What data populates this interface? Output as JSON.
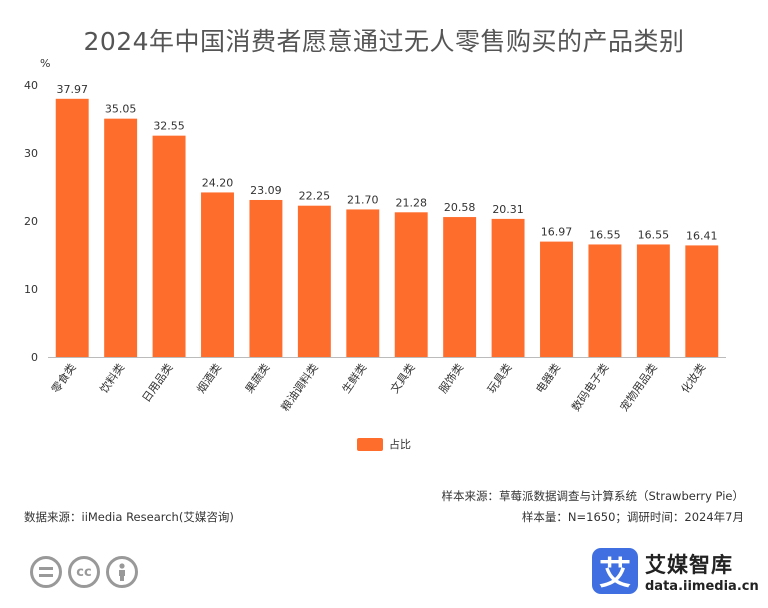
{
  "title": "2024年中国消费者愿意通过无人零售购买的产品类别",
  "chart_data": {
    "type": "bar",
    "title": "2024年中国消费者愿意通过无人零售购买的产品类别",
    "ylabel": "%",
    "ylim": [
      0,
      40
    ],
    "yticks": [
      0,
      10,
      20,
      30,
      40
    ],
    "categories": [
      "零食类",
      "饮料类",
      "日用品类",
      "烟酒类",
      "果蔬类",
      "粮油调料类",
      "生鲜类",
      "文具类",
      "服饰类",
      "玩具类",
      "电器类",
      "数码电子类",
      "宠物用品类",
      "化妆类"
    ],
    "series": [
      {
        "name": "占比",
        "values": [
          37.97,
          35.05,
          32.55,
          24.2,
          23.09,
          22.25,
          21.7,
          21.28,
          20.58,
          20.31,
          16.97,
          16.55,
          16.55,
          16.41
        ],
        "labels": [
          "37.97",
          "35.05",
          "32.55",
          "24.20",
          "23.09",
          "22.25",
          "21.70",
          "21.28",
          "20.58",
          "20.31",
          "16.97",
          "16.55",
          "16.55",
          "16.41"
        ]
      }
    ],
    "bar_color": "#ff6d2d",
    "grid": false,
    "legend": "bottom-center"
  },
  "sources": {
    "data_source": "数据来源：iiMedia Research(艾媒咨询)",
    "sample_source": "样本来源：草莓派数据调查与计算系统（Strawberry Pie）",
    "sample_info": "样本量：N=1650；调研时间：2024年7月"
  },
  "logo": {
    "mark": "艾",
    "name": "艾媒智库",
    "url": "data.iimedia.cn",
    "color": "#3f6fe0"
  },
  "license_icons": [
    "equal-icon",
    "cc-icon",
    "person-icon"
  ]
}
